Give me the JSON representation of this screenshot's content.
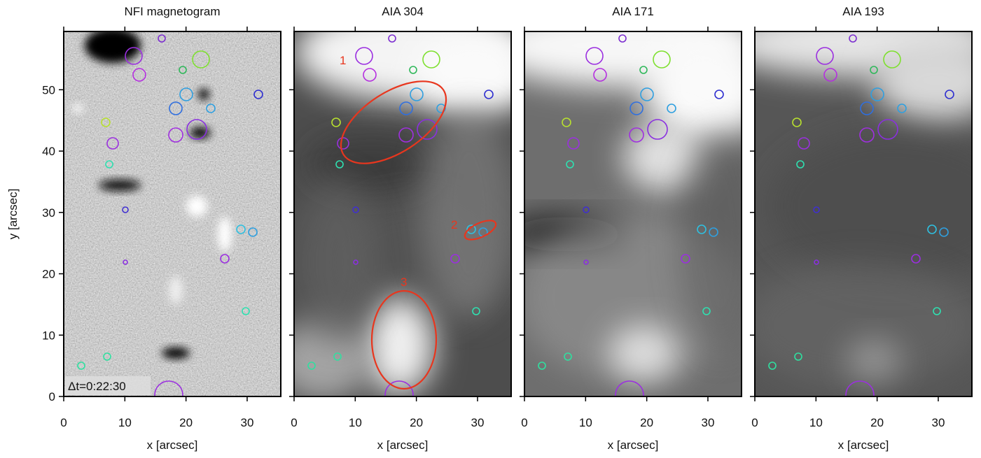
{
  "chart_data": [
    {
      "type": "image",
      "title": "NFI magnetogram",
      "xlabel": "x [arcsec]",
      "ylabel": "y [arcsec]",
      "xlim": [
        0,
        35.5
      ],
      "ylim": [
        0,
        59.5
      ],
      "xticks": [
        0,
        10,
        20,
        30
      ],
      "yticks": [
        0,
        10,
        20,
        30,
        40,
        50
      ],
      "annotations": [
        "Δt=0:22:30"
      ]
    },
    {
      "type": "image",
      "title": "AIA 304",
      "xlabel": "x [arcsec]",
      "xlim": [
        0,
        35.5
      ],
      "ylim": [
        0,
        59.5
      ],
      "xticks": [
        0,
        10,
        20,
        30
      ],
      "annotations": [
        "1",
        "2",
        "3"
      ]
    },
    {
      "type": "image",
      "title": "AIA 171",
      "xlabel": "x [arcsec]",
      "xlim": [
        0,
        35.5
      ],
      "ylim": [
        0,
        59.5
      ],
      "xticks": [
        0,
        10,
        20,
        30
      ]
    },
    {
      "type": "image",
      "title": "AIA 193",
      "xlabel": "x [arcsec]",
      "xlim": [
        0,
        35.5
      ],
      "ylim": [
        0,
        59.5
      ],
      "xticks": [
        0,
        10,
        20,
        30
      ]
    }
  ]
}
